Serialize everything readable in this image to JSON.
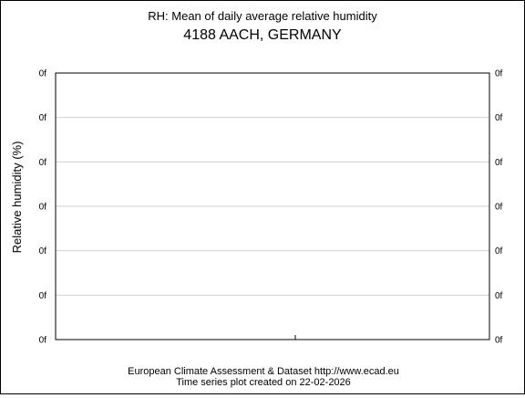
{
  "chart_data": {
    "type": "line",
    "title": "RH: Mean of daily average relative humidity",
    "subtitle": "4188 AACH, GERMANY",
    "ylabel": "Relative humidity (%)",
    "xlabel": "",
    "y_tick_labels": [
      "0f",
      "0f",
      "0f",
      "0f",
      "0f",
      "0f",
      "0f"
    ],
    "series": [],
    "grid": true,
    "footer": {
      "line1": "European Climate Assessment & Dataset  http://www.ecad.eu",
      "line2": "Time series plot created on 22-02-2026"
    }
  }
}
